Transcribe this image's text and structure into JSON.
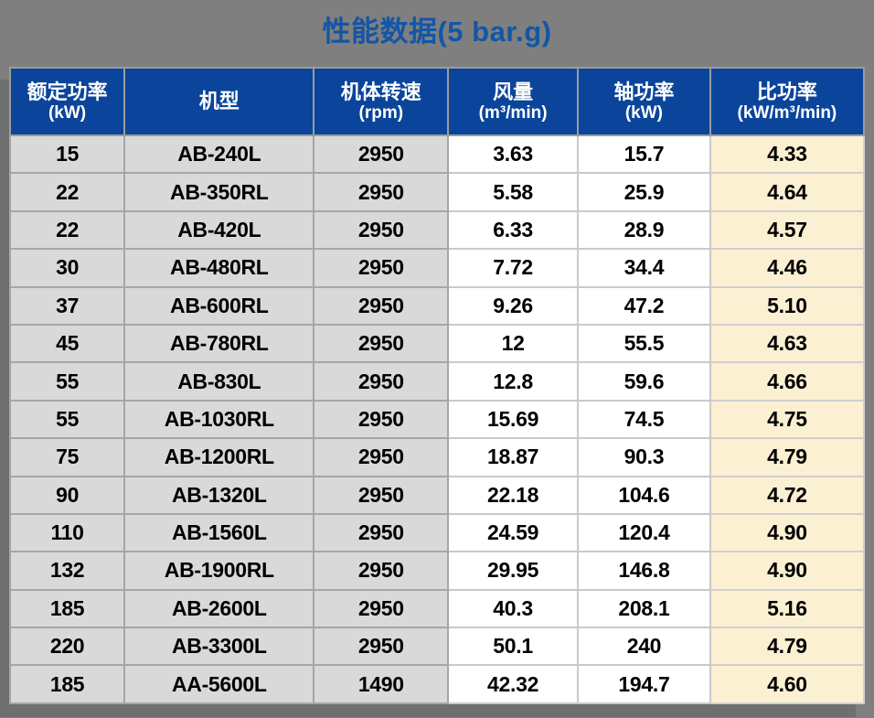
{
  "page": {
    "title": "性能数据(5 bar.g)",
    "background_color": "#7F7F7F"
  },
  "colors": {
    "title_text": "#1356A6",
    "header_background": "#0B459B",
    "header_text": "#FFFFFF",
    "cell_gray": "#D9D9D9",
    "cell_white": "#FFFFFF",
    "cell_cream": "#FCF0D2",
    "border": "#A6A6A6"
  },
  "table": {
    "columns": [
      {
        "label": "额定功率",
        "unit": "(kW)"
      },
      {
        "label": "机型",
        "unit": ""
      },
      {
        "label": "机体转速",
        "unit": "(rpm)"
      },
      {
        "label": "风量",
        "unit": "(m³/min)"
      },
      {
        "label": "轴功率",
        "unit": "(kW)"
      },
      {
        "label": "比功率",
        "unit": "(kW/m³/min)"
      }
    ],
    "rows": [
      [
        "15",
        "AB-240L",
        "2950",
        "3.63",
        "15.7",
        "4.33"
      ],
      [
        "22",
        "AB-350RL",
        "2950",
        "5.58",
        "25.9",
        "4.64"
      ],
      [
        "22",
        "AB-420L",
        "2950",
        "6.33",
        "28.9",
        "4.57"
      ],
      [
        "30",
        "AB-480RL",
        "2950",
        "7.72",
        "34.4",
        "4.46"
      ],
      [
        "37",
        "AB-600RL",
        "2950",
        "9.26",
        "47.2",
        "5.10"
      ],
      [
        "45",
        "AB-780RL",
        "2950",
        "12",
        "55.5",
        "4.63"
      ],
      [
        "55",
        "AB-830L",
        "2950",
        "12.8",
        "59.6",
        "4.66"
      ],
      [
        "55",
        "AB-1030RL",
        "2950",
        "15.69",
        "74.5",
        "4.75"
      ],
      [
        "75",
        "AB-1200RL",
        "2950",
        "18.87",
        "90.3",
        "4.79"
      ],
      [
        "90",
        "AB-1320L",
        "2950",
        "22.18",
        "104.6",
        "4.72"
      ],
      [
        "110",
        "AB-1560L",
        "2950",
        "24.59",
        "120.4",
        "4.90"
      ],
      [
        "132",
        "AB-1900RL",
        "2950",
        "29.95",
        "146.8",
        "4.90"
      ],
      [
        "185",
        "AB-2600L",
        "2950",
        "40.3",
        "208.1",
        "5.16"
      ],
      [
        "220",
        "AB-3300L",
        "2950",
        "50.1",
        "240",
        "4.79"
      ],
      [
        "185",
        "AA-5600L",
        "1490",
        "42.32",
        "194.7",
        "4.60"
      ]
    ]
  }
}
